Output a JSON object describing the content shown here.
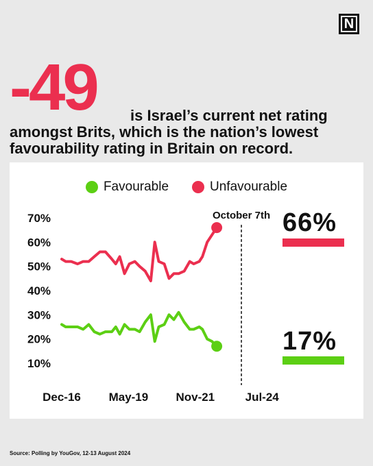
{
  "logo": {
    "text": "N"
  },
  "headline": {
    "number": "-49",
    "line1": "is Israel’s current net rating",
    "line2": "amongst Brits, which is the nation’s lowest",
    "line3": "favourability rating in Britain on record.",
    "number_color": "#eb2f4f"
  },
  "colors": {
    "favourable": "#5ccf14",
    "unfavourable": "#eb2f4f",
    "background": "#e9e9e9",
    "card": "#ffffff"
  },
  "legend": {
    "favourable": "Favourable",
    "unfavourable": "Unfavourable"
  },
  "callouts": {
    "unfavourable_current": "66%",
    "favourable_current": "17%"
  },
  "source": "Source: Polling by YouGov, 12-13 August 2024",
  "chart_data": {
    "type": "line",
    "title": "",
    "xlabel": "",
    "ylabel": "",
    "ylim": [
      0,
      70
    ],
    "y_ticks": [
      "10%",
      "20%",
      "30%",
      "40%",
      "50%",
      "60%",
      "70%"
    ],
    "y_tick_values": [
      10,
      20,
      30,
      40,
      50,
      60,
      70
    ],
    "x_ticks": [
      "Dec-16",
      "May-19",
      "Nov-21",
      "Jul-24"
    ],
    "x_tick_positions": [
      0,
      8.4,
      16.8,
      25.2
    ],
    "x_range": [
      0,
      25.7
    ],
    "legend_position": "top-center",
    "grid": false,
    "annotation": {
      "label": "October 7th",
      "x": 22.6,
      "style": "dashed-vertical"
    },
    "series": [
      {
        "name": "Unfavourable",
        "color": "#eb2f4f",
        "end_marker": true,
        "points": [
          [
            0,
            53
          ],
          [
            0.5,
            52
          ],
          [
            1.2,
            52
          ],
          [
            2,
            51
          ],
          [
            2.7,
            52
          ],
          [
            3.4,
            52
          ],
          [
            4.1,
            54
          ],
          [
            4.8,
            56
          ],
          [
            5.5,
            56
          ],
          [
            6.3,
            53
          ],
          [
            6.8,
            51
          ],
          [
            7.3,
            54
          ],
          [
            7.9,
            47
          ],
          [
            8.5,
            51
          ],
          [
            9.2,
            52
          ],
          [
            9.8,
            50
          ],
          [
            10.5,
            48
          ],
          [
            11.2,
            44
          ],
          [
            11.7,
            60
          ],
          [
            12.2,
            52
          ],
          [
            12.9,
            51
          ],
          [
            13.5,
            45
          ],
          [
            14.1,
            47
          ],
          [
            14.7,
            47
          ],
          [
            15.4,
            48
          ],
          [
            16.1,
            52
          ],
          [
            16.6,
            51
          ],
          [
            17.3,
            52
          ],
          [
            17.7,
            54
          ],
          [
            18.3,
            60
          ],
          [
            18.9,
            63
          ],
          [
            19.5,
            66
          ]
        ]
      },
      {
        "name": "Favourable",
        "color": "#5ccf14",
        "end_marker": true,
        "points": [
          [
            0,
            26
          ],
          [
            0.5,
            25
          ],
          [
            1.2,
            25
          ],
          [
            2,
            25
          ],
          [
            2.7,
            24
          ],
          [
            3.4,
            26
          ],
          [
            4.1,
            23
          ],
          [
            4.8,
            22
          ],
          [
            5.5,
            23
          ],
          [
            6.3,
            23
          ],
          [
            6.8,
            25
          ],
          [
            7.3,
            22
          ],
          [
            7.9,
            26
          ],
          [
            8.5,
            24
          ],
          [
            9.2,
            24
          ],
          [
            9.8,
            23
          ],
          [
            10.5,
            27
          ],
          [
            11.2,
            30
          ],
          [
            11.7,
            19
          ],
          [
            12.2,
            25
          ],
          [
            12.9,
            26
          ],
          [
            13.5,
            30
          ],
          [
            14.1,
            28
          ],
          [
            14.7,
            31
          ],
          [
            15.4,
            27
          ],
          [
            16.1,
            24
          ],
          [
            16.6,
            24
          ],
          [
            17.3,
            25
          ],
          [
            17.7,
            24
          ],
          [
            18.3,
            20
          ],
          [
            18.9,
            19
          ],
          [
            19.5,
            17
          ]
        ]
      }
    ]
  }
}
